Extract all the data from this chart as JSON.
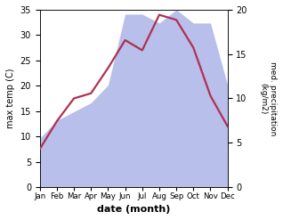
{
  "months": [
    "Jan",
    "Feb",
    "Mar",
    "Apr",
    "May",
    "Jun",
    "Jul",
    "Aug",
    "Sep",
    "Oct",
    "Nov",
    "Dec"
  ],
  "temperature": [
    7.5,
    13.0,
    17.5,
    18.5,
    23.5,
    29.0,
    27.0,
    34.0,
    33.0,
    27.5,
    18.0,
    12.0
  ],
  "precipitation": [
    5.5,
    7.5,
    8.5,
    9.5,
    11.5,
    19.5,
    19.5,
    18.5,
    20.0,
    18.5,
    18.5,
    11.5
  ],
  "temp_ylim": [
    0,
    35
  ],
  "precip_ylim": [
    0,
    20
  ],
  "temp_color": "#b03050",
  "precip_fill_color": "#b0b8e8",
  "precip_fill_alpha": 0.9,
  "xlabel": "date (month)",
  "ylabel_left": "max temp (C)",
  "ylabel_right": "med. precipitation\n(kg/m2)",
  "temp_linewidth": 1.6,
  "background_color": "#ffffff"
}
